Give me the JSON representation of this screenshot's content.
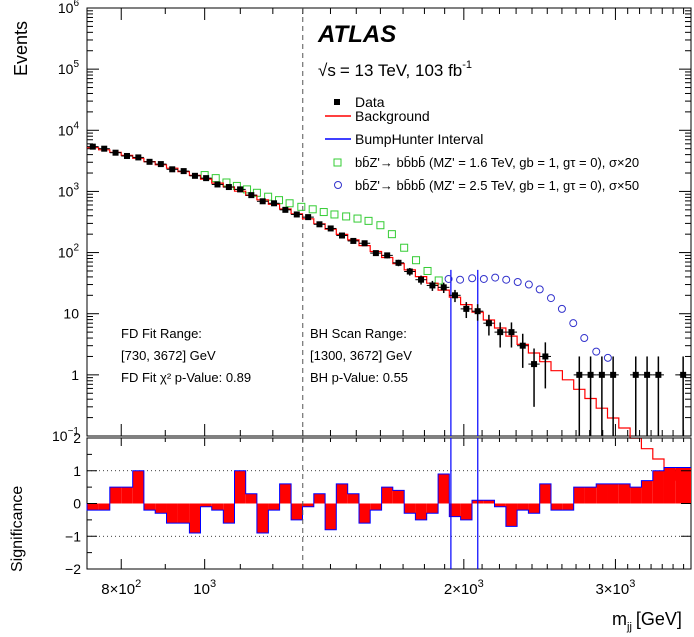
{
  "chart_data": {
    "type": "line",
    "experiment": "ATLAS",
    "energy_text": "= 13 TeV, 103 fb",
    "energy_sqrt": "√s",
    "lumi_exp": "-1",
    "xlabel_main": "m",
    "xlabel_sub": "jj",
    "xlabel_unit": "[GeV]",
    "ylabel": "Events",
    "ylabel_bottom": "Significance",
    "xlim": [
      730,
      3672
    ],
    "x_log": true,
    "ylim": [
      0.1,
      1000000
    ],
    "y_log": true,
    "ylim_bottom": [
      -2,
      2
    ],
    "x_ticks_major": [
      {
        "value": 800,
        "base": "8×10",
        "exp": "2"
      },
      {
        "value": 1000,
        "base": "10",
        "exp": "3"
      },
      {
        "value": 2000,
        "base": "2×10",
        "exp": "3"
      },
      {
        "value": 3000,
        "base": "3×10",
        "exp": "3"
      }
    ],
    "x_ticks_minor": [
      900,
      1100,
      1200,
      1300,
      1400,
      1500,
      1600,
      1700,
      1800,
      1900,
      2100,
      2200,
      2300,
      2400,
      2500,
      2600,
      2700,
      2800,
      2900,
      3100,
      3200,
      3300,
      3400,
      3500,
      3600
    ],
    "y_ticks": [
      {
        "value": 0.1,
        "base": "10",
        "exp": "−1"
      },
      {
        "value": 1,
        "base": "1",
        "exp": ""
      },
      {
        "value": 10,
        "base": "10",
        "exp": ""
      },
      {
        "value": 100,
        "base": "10",
        "exp": "2"
      },
      {
        "value": 1000,
        "base": "10",
        "exp": "3"
      },
      {
        "value": 10000,
        "base": "10",
        "exp": "4"
      },
      {
        "value": 100000,
        "base": "10",
        "exp": "5"
      },
      {
        "value": 1000000,
        "base": "10",
        "exp": "6"
      }
    ],
    "y_ticks_bottom": [
      "−2",
      "−1",
      "0",
      "1",
      "2"
    ],
    "legend": {
      "placement": "top-right",
      "data": "Data",
      "background": "Background",
      "bumphunter": "BumpHunter Interval",
      "sig1": "bb̄Z'→ bb̄bb̄ (MZ' = 1.6 TeV, gb = 1, gτ = 0), σ×20",
      "sig2": "bb̄Z'→ bb̄bb̄ (MZ' = 2.5 TeV, gb = 1, gτ = 0), σ×50"
    },
    "annotations": {
      "fd_range_title": "FD Fit Range:",
      "fd_range_value": "[730, 3672] GeV",
      "fd_pvalue": "FD Fit χ² p-Value: 0.89",
      "bh_range_title": "BH Scan Range:",
      "bh_range_value": "[1300, 3672] GeV",
      "bh_pvalue": "BH p-Value: 0.55"
    },
    "bh_scan_start": 1300,
    "bumphunter_interval": [
      1932,
      2076
    ],
    "colors": {
      "data": "#000000",
      "background": "#ff0000",
      "bumphunter": "#0000ff",
      "sig1": "#33cc33",
      "sig2": "#3333cc",
      "significance_fill": "#ff0000",
      "significance_edge": "#0000ff"
    },
    "bin_edges": [
      730,
      753,
      776,
      800,
      825,
      850,
      876,
      903,
      931,
      960,
      989,
      1019,
      1051,
      1083,
      1116,
      1150,
      1186,
      1222,
      1260,
      1299,
      1339,
      1380,
      1422,
      1466,
      1511,
      1557,
      1605,
      1654,
      1705,
      1757,
      1811,
      1867,
      1924,
      1983,
      2044,
      2107,
      2171,
      2238,
      2306,
      2377,
      2450,
      2525,
      2603,
      2683,
      2765,
      2850,
      2937,
      3027,
      3120,
      3216,
      3315,
      3416,
      3521,
      3672
    ],
    "background": [
      5200,
      4800,
      4350,
      3900,
      3480,
      3080,
      2730,
      2400,
      2100,
      1830,
      1590,
      1370,
      1180,
      1010,
      860,
      730,
      615,
      515,
      430,
      357,
      295,
      242,
      198,
      161,
      130,
      104,
      83,
      66,
      52,
      40.5,
      31.5,
      24.3,
      18.6,
      14.1,
      10.6,
      7.9,
      5.85,
      4.3,
      3.15,
      2.28,
      1.64,
      1.17,
      0.83,
      0.58,
      0.41,
      0.285,
      0.197,
      0.135,
      0.092,
      0.062,
      0.042,
      0.028,
      0.019
    ],
    "data": [
      5400,
      5000,
      4300,
      3800,
      3600,
      3050,
      2800,
      2300,
      2150,
      1800,
      1650,
      1300,
      1180,
      1080,
      870,
      690,
      640,
      500,
      420,
      380,
      290,
      248,
      190,
      155,
      142,
      98,
      90,
      68,
      49,
      36,
      29,
      27,
      20,
      12,
      11,
      7,
      5,
      5,
      3,
      1.5,
      2,
      0,
      0,
      1,
      1,
      1,
      1,
      0,
      1,
      1,
      1,
      0,
      1
    ],
    "data_errors": [
      74,
      71,
      66,
      62,
      60,
      55,
      53,
      48,
      46,
      42,
      41,
      36,
      34,
      33,
      29,
      26,
      25,
      22,
      20,
      19,
      17,
      16,
      14,
      12,
      12,
      10,
      9.5,
      8.2,
      7,
      6,
      5.4,
      5.2,
      4.5,
      3.5,
      3.3,
      2.6,
      2.2,
      2.2,
      1.7,
      1.2,
      1.4,
      0,
      0,
      1,
      1,
      1,
      1,
      0,
      1,
      1,
      1,
      0,
      1
    ],
    "signal_1600": [
      [
        1000,
        1850
      ],
      [
        1030,
        1650
      ],
      [
        1060,
        1400
      ],
      [
        1090,
        1230
      ],
      [
        1120,
        1080
      ],
      [
        1150,
        950
      ],
      [
        1185,
        820
      ],
      [
        1220,
        720
      ],
      [
        1255,
        640
      ],
      [
        1295,
        560
      ],
      [
        1335,
        510
      ],
      [
        1375,
        460
      ],
      [
        1415,
        420
      ],
      [
        1460,
        390
      ],
      [
        1505,
        360
      ],
      [
        1550,
        330
      ],
      [
        1600,
        280
      ],
      [
        1650,
        200
      ],
      [
        1705,
        120
      ],
      [
        1760,
        75
      ],
      [
        1815,
        50
      ],
      [
        1870,
        35
      ]
    ],
    "signal_2500": [
      [
        1920,
        37
      ],
      [
        1980,
        36
      ],
      [
        2045,
        38
      ],
      [
        2110,
        37
      ],
      [
        2175,
        39
      ],
      [
        2240,
        36
      ],
      [
        2310,
        33
      ],
      [
        2380,
        30
      ],
      [
        2450,
        25
      ],
      [
        2525,
        18
      ],
      [
        2600,
        12
      ],
      [
        2680,
        7
      ],
      [
        2760,
        4
      ],
      [
        2850,
        2.4
      ],
      [
        2940,
        1.9
      ]
    ],
    "significance": [
      -0.2,
      -0.2,
      0.5,
      0.5,
      1.0,
      -0.2,
      -0.3,
      -0.6,
      -0.6,
      -0.9,
      -0.1,
      -0.2,
      -0.6,
      1.0,
      0.3,
      -0.9,
      -0.2,
      0.6,
      -0.5,
      -0.1,
      0.3,
      -0.8,
      0.6,
      0.3,
      -0.6,
      -0.2,
      0.5,
      0.4,
      -0.3,
      -0.5,
      -0.3,
      0.9,
      -0.4,
      -0.5,
      0.1,
      0.1,
      -0.1,
      -0.7,
      -0.2,
      -0.3,
      0.6,
      -0.2,
      -0.2,
      0.5,
      0.5,
      0.6,
      0.6,
      0.6,
      0.5,
      0.7,
      1.0,
      1.1,
      1.1
    ]
  }
}
